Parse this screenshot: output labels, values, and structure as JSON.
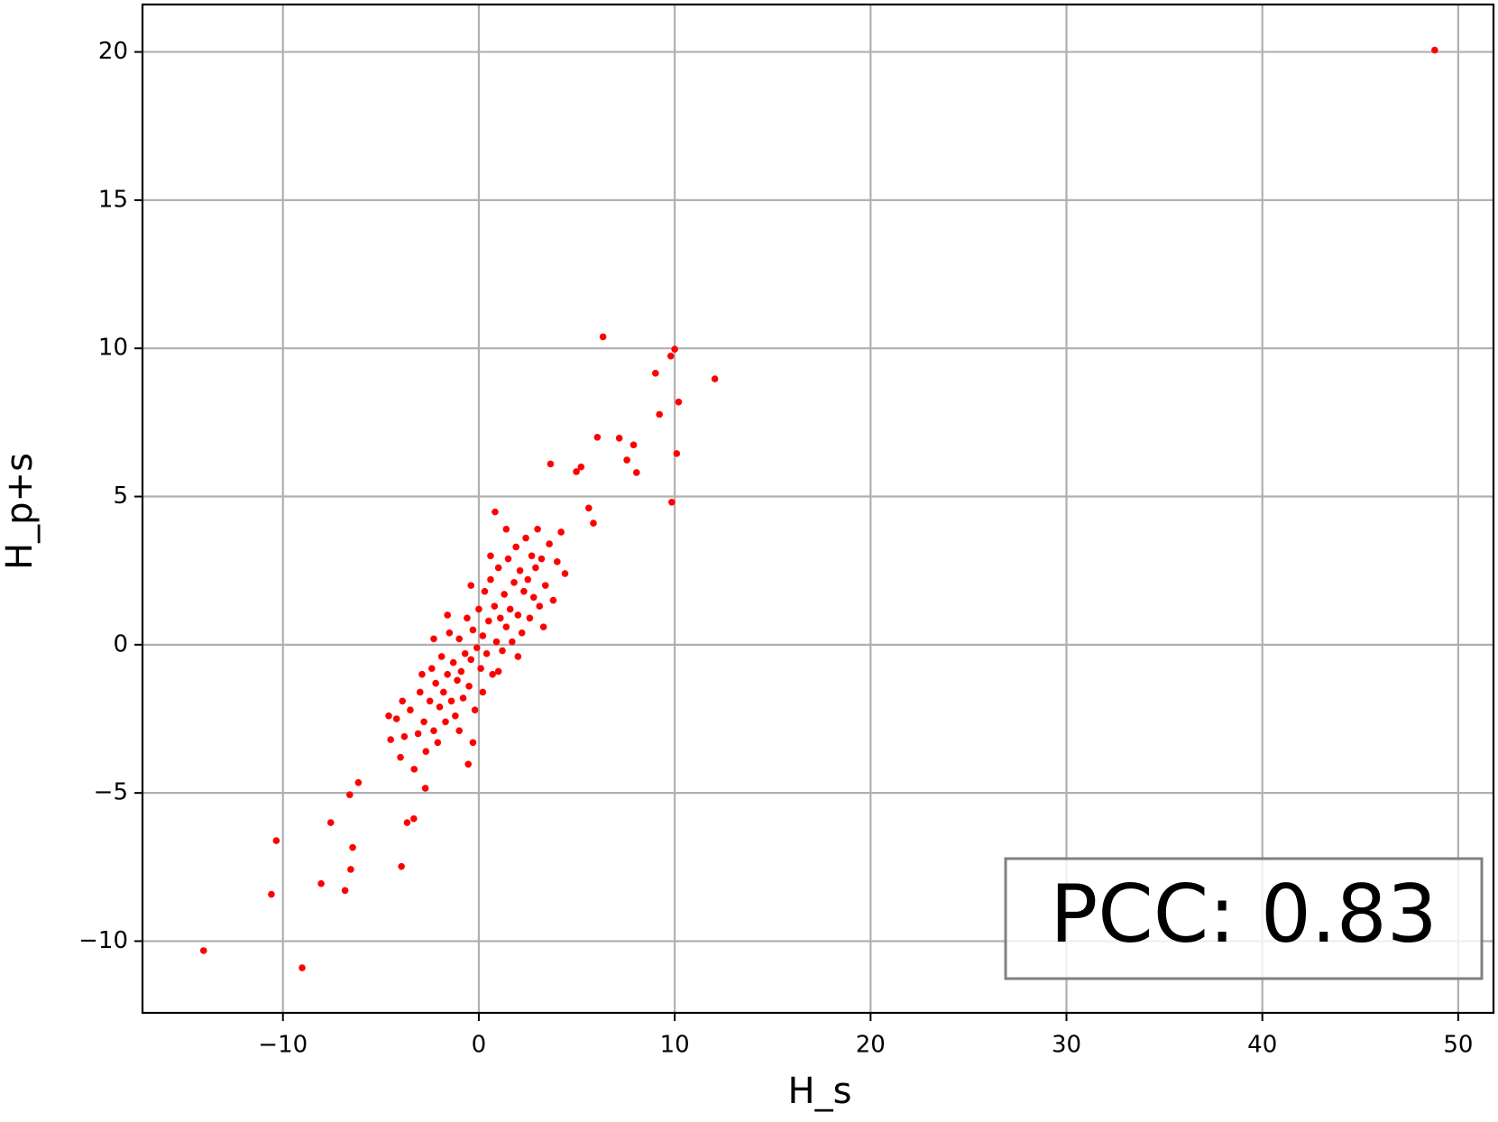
{
  "chart_data": {
    "type": "scatter",
    "xlabel": "H_s",
    "ylabel": "H_p+s",
    "annotation": "PCC: 0.83",
    "color": "#ff0000",
    "grid": true,
    "xlim": [
      -17.17,
      51.8
    ],
    "ylim": [
      -12.42,
      21.6
    ],
    "xticks": [
      {
        "value": -10,
        "label": "−10"
      },
      0,
      10,
      20,
      30,
      40,
      50
    ],
    "yticks": [
      {
        "value": -10,
        "label": "−10"
      },
      {
        "value": -5,
        "label": "−5"
      },
      0,
      5,
      10,
      15,
      20
    ],
    "x": [
      48.8,
      6.34,
      10.0,
      9.8,
      9.02,
      12.05,
      10.2,
      9.22,
      6.05,
      7.17,
      7.9,
      7.56,
      10.1,
      8.05,
      9.85,
      3.66,
      5.22,
      4.98,
      -14.05,
      -9.02,
      -10.59,
      -10.34,
      -8.05,
      -6.83,
      -6.54,
      -6.44,
      -7.56,
      -3.95,
      -3.66,
      -3.32,
      -6.59,
      -6.15,
      -0.54,
      -2.73,
      0.83,
      5.85,
      5.61,
      -4.2,
      -4.0,
      -3.8,
      -3.5,
      -3.3,
      -3.1,
      -3.0,
      -2.8,
      -2.7,
      -2.5,
      -2.4,
      -2.3,
      -2.2,
      -2.1,
      -2.0,
      -1.9,
      -1.8,
      -1.7,
      -1.6,
      -1.5,
      -1.4,
      -1.3,
      -1.2,
      -1.1,
      -1.0,
      -0.9,
      -0.8,
      -0.7,
      -0.6,
      -0.5,
      -0.4,
      -0.3,
      -0.2,
      -0.1,
      0.0,
      0.1,
      0.2,
      0.3,
      0.4,
      0.5,
      0.6,
      0.7,
      0.8,
      0.9,
      1.0,
      1.1,
      1.2,
      1.3,
      1.4,
      1.5,
      1.6,
      1.7,
      1.8,
      1.9,
      2.0,
      2.1,
      2.2,
      2.3,
      2.4,
      2.5,
      2.6,
      2.7,
      2.8,
      2.9,
      3.0,
      3.1,
      3.2,
      3.4,
      3.6,
      3.8,
      4.0,
      4.2,
      4.4,
      -4.5,
      -4.6,
      -3.9,
      -2.9,
      -1.0,
      0.2,
      1.0,
      2.0,
      3.3,
      -1.6,
      -0.4,
      0.6,
      1.4,
      -0.3,
      -2.3
    ],
    "values": [
      20.06,
      10.39,
      9.97,
      9.74,
      9.16,
      8.97,
      8.19,
      7.77,
      7.0,
      6.97,
      6.74,
      6.23,
      6.45,
      5.81,
      4.81,
      6.1,
      6.0,
      5.84,
      -10.32,
      -10.9,
      -8.42,
      -6.61,
      -8.06,
      -8.29,
      -7.58,
      -6.84,
      -6.0,
      -7.48,
      -6.0,
      -5.87,
      -5.06,
      -4.65,
      -4.03,
      -4.84,
      4.48,
      4.1,
      4.61,
      -2.5,
      -3.8,
      -3.1,
      -2.2,
      -4.2,
      -3.0,
      -1.6,
      -2.6,
      -3.6,
      -1.9,
      -0.8,
      -2.9,
      -1.3,
      -3.3,
      -2.1,
      -0.4,
      -1.6,
      -2.6,
      -1.0,
      0.4,
      -1.9,
      -0.6,
      -2.4,
      -1.2,
      0.2,
      -0.9,
      -1.8,
      -0.3,
      0.9,
      -1.4,
      -0.5,
      0.5,
      -2.2,
      -0.1,
      1.2,
      -0.8,
      0.3,
      1.8,
      -0.3,
      0.8,
      2.2,
      -1.0,
      1.3,
      0.1,
      2.6,
      0.9,
      -0.2,
      1.7,
      0.6,
      2.9,
      1.2,
      0.1,
      2.1,
      3.3,
      1.0,
      2.5,
      0.4,
      1.8,
      3.6,
      2.2,
      0.9,
      3.0,
      1.6,
      2.6,
      3.9,
      1.3,
      2.9,
      2.0,
      3.4,
      1.5,
      2.8,
      3.8,
      2.4,
      -3.2,
      -2.4,
      -1.9,
      -1.0,
      -2.9,
      -1.6,
      -0.9,
      -0.4,
      0.6,
      1.0,
      2.0,
      3.0,
      3.9,
      -3.3,
      0.2
    ]
  }
}
